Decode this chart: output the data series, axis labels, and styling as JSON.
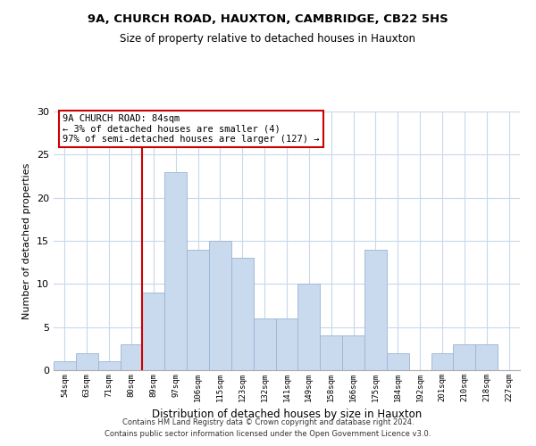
{
  "title1": "9A, CHURCH ROAD, HAUXTON, CAMBRIDGE, CB22 5HS",
  "title2": "Size of property relative to detached houses in Hauxton",
  "xlabel": "Distribution of detached houses by size in Hauxton",
  "ylabel": "Number of detached properties",
  "bin_labels": [
    "54sqm",
    "63sqm",
    "71sqm",
    "80sqm",
    "89sqm",
    "97sqm",
    "106sqm",
    "115sqm",
    "123sqm",
    "132sqm",
    "141sqm",
    "149sqm",
    "158sqm",
    "166sqm",
    "175sqm",
    "184sqm",
    "192sqm",
    "201sqm",
    "210sqm",
    "218sqm",
    "227sqm"
  ],
  "bar_heights": [
    1,
    2,
    1,
    3,
    9,
    23,
    14,
    15,
    13,
    6,
    6,
    10,
    4,
    4,
    14,
    2,
    0,
    2,
    3,
    3,
    0
  ],
  "bar_color": "#c9d9ee",
  "bar_edge_color": "#9ab5d5",
  "vline_x_index": 4,
  "vline_color": "#cc0000",
  "annotation_line1": "9A CHURCH ROAD: 84sqm",
  "annotation_line2": "← 3% of detached houses are smaller (4)",
  "annotation_line3": "97% of semi-detached houses are larger (127) →",
  "annotation_box_color": "#ffffff",
  "annotation_box_edge_color": "#cc0000",
  "ylim": [
    0,
    30
  ],
  "yticks": [
    0,
    5,
    10,
    15,
    20,
    25,
    30
  ],
  "footer1": "Contains HM Land Registry data © Crown copyright and database right 2024.",
  "footer2": "Contains public sector information licensed under the Open Government Licence v3.0.",
  "bg_color": "#ffffff",
  "grid_color": "#c8d8ea"
}
